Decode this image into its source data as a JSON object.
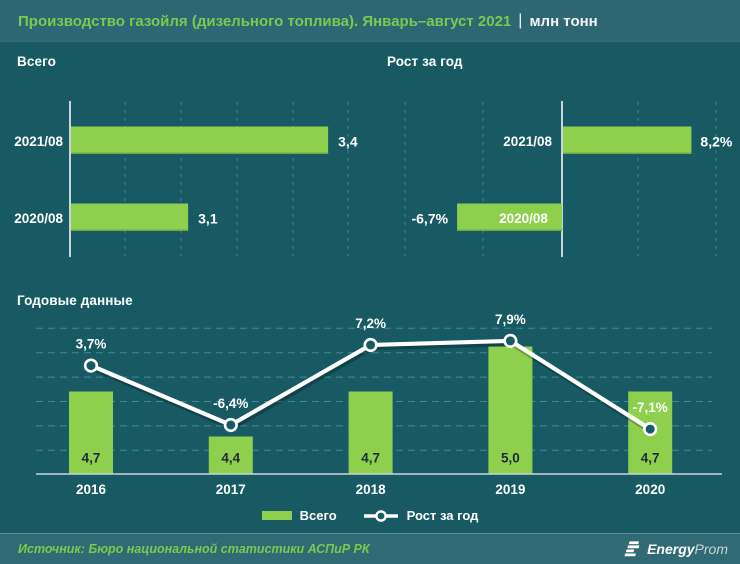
{
  "header": {
    "title": "Производство газойля (дизельного топлива). Январь–август 2021",
    "separator": "|",
    "unit": "млн тонн"
  },
  "legend": {
    "position": "bottom-center",
    "items": [
      {
        "label": "Всего",
        "swatch": "bar",
        "color": "#8ed04e"
      },
      {
        "label": "Рост за год",
        "swatch": "line-marker",
        "color": "#ffffff"
      }
    ]
  },
  "footer": {
    "source": "Источник: Бюро национальной статистики АСПиР РК",
    "logo": {
      "icon": "energyprom-icon",
      "text_bold": "Energy",
      "text_light": "Prom"
    }
  },
  "colors": {
    "accent_green": "#8ed04e",
    "accent_green_dark": "#69a33b",
    "header_green": "#7dc94f",
    "band": "#2e6673",
    "body": "#175a64",
    "footer": "#306a75",
    "grid": "#4a93a3",
    "axis": "#c9d5d9",
    "bar_label_dark": "#1d2b36",
    "line": "#ffffff"
  },
  "chart_data": [
    {
      "type": "bar",
      "orientation": "horizontal",
      "title": "Всего",
      "categories": [
        "2021/08",
        "2020/08"
      ],
      "values": [
        3.4,
        3.1
      ],
      "value_labels": [
        "3,4",
        "3,1"
      ],
      "unit": "млн тонн",
      "grid": "vertical-dashed"
    },
    {
      "type": "bar",
      "orientation": "horizontal",
      "title": "Рост за год",
      "categories": [
        "2021/08",
        "2020/08"
      ],
      "values": [
        8.2,
        -6.7
      ],
      "value_labels": [
        "8,2%",
        "-6,7%"
      ],
      "unit": "%",
      "gridline_step_pct": 5,
      "grid": "vertical-dashed"
    },
    {
      "type": "bar+line",
      "title": "Годовые данные",
      "categories": [
        "2016",
        "2017",
        "2018",
        "2019",
        "2020"
      ],
      "series": [
        {
          "name": "Всего",
          "type": "bar",
          "values": [
            4.7,
            4.4,
            4.7,
            5.0,
            4.7
          ],
          "labels": [
            "4,7",
            "4,4",
            "4,7",
            "5,0",
            "4,7"
          ]
        },
        {
          "name": "Рост за год",
          "type": "line",
          "values": [
            3.7,
            -6.4,
            7.2,
            7.9,
            -7.1
          ],
          "labels": [
            "3,7%",
            "-6,4%",
            "7,2%",
            "7,9%",
            "-7,1%"
          ]
        }
      ],
      "grid": "horizontal-dashed",
      "legend_position": "bottom"
    }
  ]
}
